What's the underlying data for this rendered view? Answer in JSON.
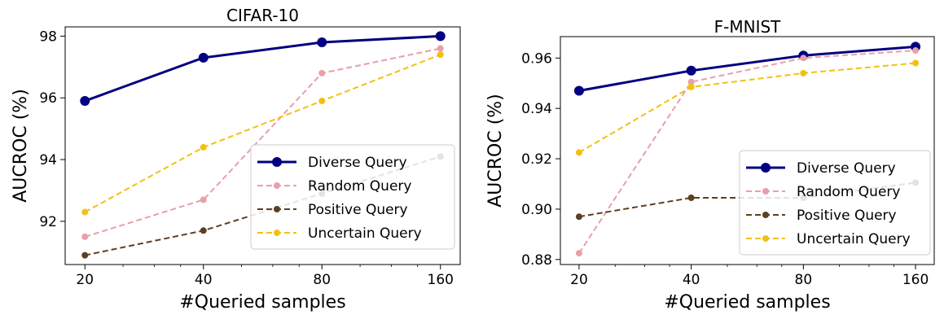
{
  "chart_data": [
    {
      "type": "line",
      "title": "CIFAR-10",
      "xlabel": "#Queried samples",
      "ylabel": "AUCROC (%)",
      "x_scale": "log2",
      "x": [
        20,
        40,
        80,
        160
      ],
      "x_tick_labels": [
        "20",
        "40",
        "80",
        "160"
      ],
      "ylim": [
        90.6,
        98.3
      ],
      "yticks": [
        92,
        94,
        96,
        98
      ],
      "y_tick_labels": [
        "92",
        "94",
        "96",
        "98"
      ],
      "legend_position": "lower-right",
      "series": [
        {
          "name": "Diverse Query",
          "values": [
            95.9,
            97.3,
            97.8,
            98.0
          ],
          "color": "#000080",
          "style": "solid"
        },
        {
          "name": "Random Query",
          "values": [
            91.5,
            92.7,
            96.8,
            97.6
          ],
          "color": "#e8a0a8",
          "style": "dashed"
        },
        {
          "name": "Positive Query",
          "values": [
            90.9,
            91.7,
            92.9,
            94.1
          ],
          "color": "#5c4020",
          "style": "dashed"
        },
        {
          "name": "Uncertain Query",
          "values": [
            92.3,
            94.4,
            95.9,
            97.4
          ],
          "color": "#f2c110",
          "style": "dashed"
        }
      ]
    },
    {
      "type": "line",
      "title": "F-MNIST",
      "xlabel": "#Queried samples",
      "ylabel": "AUCROC (%)",
      "x_scale": "log2",
      "x": [
        20,
        40,
        80,
        160
      ],
      "x_tick_labels": [
        "20",
        "40",
        "80",
        "160"
      ],
      "ylim": [
        0.878,
        0.9685
      ],
      "yticks": [
        0.88,
        0.9,
        0.92,
        0.94,
        0.96
      ],
      "y_tick_labels": [
        "0.88",
        "0.90",
        "0.92",
        "0.94",
        "0.96"
      ],
      "legend_position": "lower-right",
      "series": [
        {
          "name": "Diverse Query",
          "values": [
            0.947,
            0.955,
            0.961,
            0.9645
          ],
          "color": "#000080",
          "style": "solid"
        },
        {
          "name": "Random Query",
          "values": [
            0.8825,
            0.9505,
            0.96,
            0.963
          ],
          "color": "#e8a0a8",
          "style": "dashed"
        },
        {
          "name": "Positive Query",
          "values": [
            0.897,
            0.9045,
            0.9045,
            0.9105
          ],
          "color": "#5c4020",
          "style": "dashed"
        },
        {
          "name": "Uncertain Query",
          "values": [
            0.9225,
            0.9485,
            0.954,
            0.958
          ],
          "color": "#f2c110",
          "style": "dashed"
        }
      ]
    }
  ]
}
